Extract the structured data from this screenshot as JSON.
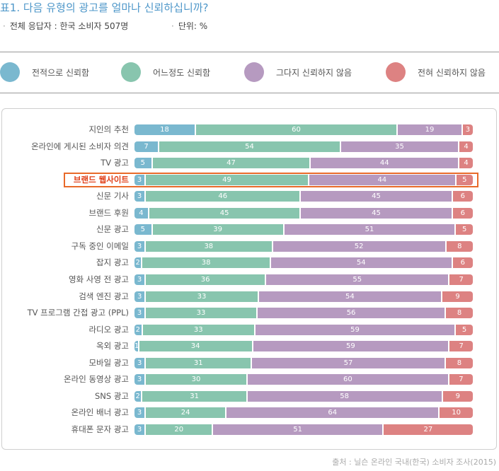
{
  "header": {
    "title": "표1. 다음 유형의 광고를 얼마나 신뢰하십니까?",
    "respondents": "전체 응답자 : 한국 소비자 507명",
    "unit": "단위: %"
  },
  "chart_data": {
    "type": "bar",
    "orientation": "horizontal",
    "stacked": true,
    "normalized_100": true,
    "legend_position": "top",
    "highlight_category": "브랜드 웹사이트",
    "categories": [
      "지인의 추천",
      "온라인에 게시된 소비자 의견",
      "TV 광고",
      "브랜드 웹사이트",
      "신문 기사",
      "브랜드 후원",
      "신문 광고",
      "구독 중인 이메일",
      "잡지 광고",
      "영화 사영 전 광고",
      "검색 엔진 광고",
      "TV 프로그램 간접 광고 (PPL)",
      "라디오 광고",
      "옥외 광고",
      "모바일 광고",
      "온라인 동영상 광고",
      "SNS 광고",
      "온라인 배너 광고",
      "휴대폰 문자 광고"
    ],
    "series": [
      {
        "name": "전적으로 신뢰함",
        "color": "#7ab8cf",
        "values": [
          18,
          7,
          5,
          3,
          3,
          4,
          5,
          3,
          2,
          3,
          3,
          3,
          2,
          1,
          3,
          3,
          2,
          3,
          3
        ]
      },
      {
        "name": "어느정도 신뢰함",
        "color": "#88c5ae",
        "values": [
          60,
          54,
          47,
          49,
          46,
          45,
          39,
          38,
          38,
          36,
          33,
          33,
          33,
          34,
          31,
          30,
          31,
          24,
          20
        ]
      },
      {
        "name": "그다지 신뢰하지 않음",
        "color": "#b69ac0",
        "values": [
          19,
          35,
          44,
          44,
          45,
          45,
          51,
          52,
          54,
          55,
          54,
          56,
          59,
          59,
          57,
          60,
          58,
          64,
          51
        ]
      },
      {
        "name": "전혀 신뢰하지 않음",
        "color": "#dd8282",
        "values": [
          3,
          4,
          4,
          5,
          6,
          6,
          5,
          8,
          6,
          7,
          9,
          8,
          5,
          7,
          8,
          7,
          9,
          10,
          27
        ]
      }
    ]
  },
  "source": "출처 : 닐슨 온라인 국내(한국) 소비자 조사(2015)"
}
